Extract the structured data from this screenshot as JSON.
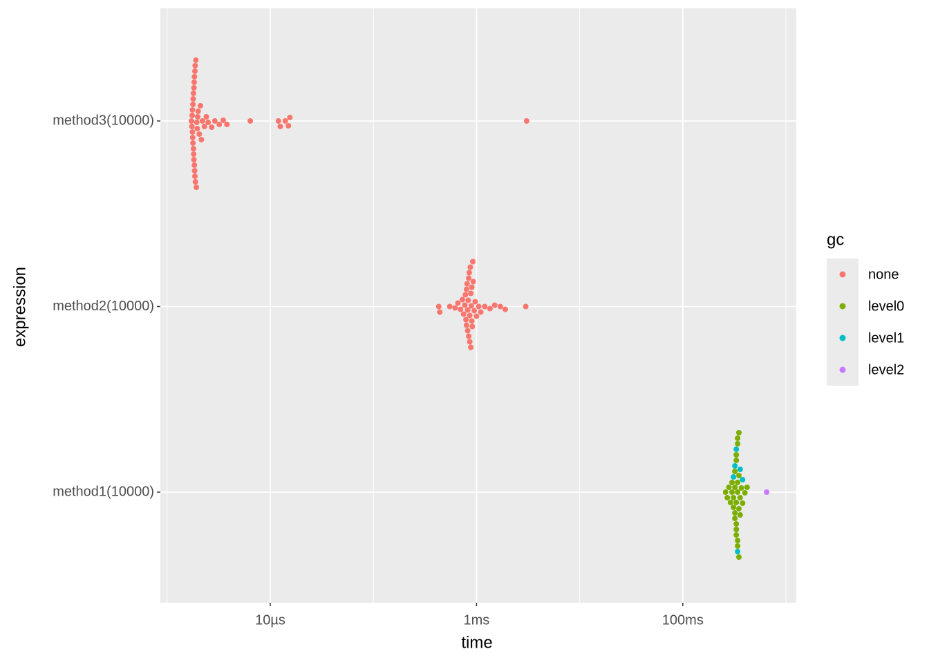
{
  "chart_data": {
    "type": "scatter",
    "x_label": "time",
    "y_label": "expression",
    "categories": [
      "method1(10000)",
      "method2(10000)",
      "method3(10000)"
    ],
    "xscale": "log",
    "xlim": [
      8.6e-07,
      1.26
    ],
    "xticks": [
      {
        "value": 1e-05,
        "label": "10µs"
      },
      {
        "value": 0.001,
        "label": "1ms"
      },
      {
        "value": 0.1,
        "label": "100ms"
      }
    ],
    "minor_xticks": [
      1e-06,
      0.0001,
      0.01,
      1
    ],
    "grid": true,
    "legend_title": "gc",
    "legend_position": "right",
    "series": [
      {
        "name": "none",
        "color": "#F8766D",
        "x": [
          1.72e-06,
          1.74e-06,
          1.75e-06,
          1.76e-06,
          1.77e-06,
          1.78e-06,
          1.79e-06,
          1.8e-06,
          1.81e-06,
          1.82e-06,
          1.83e-06,
          1.84e-06,
          1.85e-06,
          1.86e-06,
          1.87e-06,
          1.88e-06,
          1.9e-06,
          1.92e-06,
          1.94e-06,
          1.96e-06,
          1.98e-06,
          2e-06,
          2.05e-06,
          2.1e-06,
          2.15e-06,
          2.2e-06,
          2.3e-06,
          2.4e-06,
          2.5e-06,
          2.7e-06,
          2.9e-06,
          3.2e-06,
          3.5e-06,
          3.8e-06,
          1.76e-06,
          1.78e-06,
          1.8e-06,
          1.82e-06,
          1.84e-06,
          1.86e-06,
          6.4e-06,
          1.2e-05,
          1.25e-05,
          1.4e-05,
          1.5e-05,
          1.55e-05,
          0.00306,
          0.00043,
          0.00044,
          0.00055,
          0.00062,
          0.00066,
          0.0007,
          0.00073,
          0.00075,
          0.00077,
          0.00078,
          0.00079,
          0.0008,
          0.00081,
          0.00082,
          0.00083,
          0.00084,
          0.00085,
          0.00086,
          0.00087,
          0.00088,
          0.00089,
          0.0009,
          0.00091,
          0.00092,
          0.00093,
          0.00095,
          0.00097,
          0.001,
          0.00105,
          0.0011,
          0.0012,
          0.00135,
          0.0015,
          0.0017,
          0.0019,
          0.003,
          0.0008,
          0.00082,
          0.00084,
          0.00086,
          0.00088,
          0.0009
        ],
        "y": [
          "method3(10000)",
          "method3(10000)",
          "method3(10000)",
          "method3(10000)",
          "method3(10000)",
          "method3(10000)",
          "method3(10000)",
          "method3(10000)",
          "method3(10000)",
          "method3(10000)",
          "method3(10000)",
          "method3(10000)",
          "method3(10000)",
          "method3(10000)",
          "method3(10000)",
          "method3(10000)",
          "method3(10000)",
          "method3(10000)",
          "method3(10000)",
          "method3(10000)",
          "method3(10000)",
          "method3(10000)",
          "method3(10000)",
          "method3(10000)",
          "method3(10000)",
          "method3(10000)",
          "method3(10000)",
          "method3(10000)",
          "method3(10000)",
          "method3(10000)",
          "method3(10000)",
          "method3(10000)",
          "method3(10000)",
          "method3(10000)",
          "method3(10000)",
          "method3(10000)",
          "method3(10000)",
          "method3(10000)",
          "method3(10000)",
          "method3(10000)",
          "method3(10000)",
          "method3(10000)",
          "method3(10000)",
          "method3(10000)",
          "method3(10000)",
          "method3(10000)",
          "method3(10000)",
          "method2(10000)",
          "method2(10000)",
          "method2(10000)",
          "method2(10000)",
          "method2(10000)",
          "method2(10000)",
          "method2(10000)",
          "method2(10000)",
          "method2(10000)",
          "method2(10000)",
          "method2(10000)",
          "method2(10000)",
          "method2(10000)",
          "method2(10000)",
          "method2(10000)",
          "method2(10000)",
          "method2(10000)",
          "method2(10000)",
          "method2(10000)",
          "method2(10000)",
          "method2(10000)",
          "method2(10000)",
          "method2(10000)",
          "method2(10000)",
          "method2(10000)",
          "method2(10000)",
          "method2(10000)",
          "method2(10000)",
          "method2(10000)",
          "method2(10000)",
          "method2(10000)",
          "method2(10000)",
          "method2(10000)",
          "method2(10000)",
          "method2(10000)",
          "method2(10000)",
          "method2(10000)",
          "method2(10000)",
          "method2(10000)",
          "method2(10000)",
          "method2(10000)",
          "method2(10000)"
        ]
      },
      {
        "name": "level0",
        "color": "#7CAE00",
        "x": [
          0.26,
          0.27,
          0.28,
          0.29,
          0.3,
          0.3,
          0.31,
          0.31,
          0.32,
          0.32,
          0.32,
          0.33,
          0.33,
          0.33,
          0.33,
          0.34,
          0.34,
          0.34,
          0.34,
          0.35,
          0.35,
          0.35,
          0.36,
          0.36,
          0.37,
          0.38,
          0.4,
          0.42,
          0.33,
          0.34,
          0.32,
          0.35,
          0.33,
          0.34
        ],
        "y": [
          "method1(10000)",
          "method1(10000)",
          "method1(10000)",
          "method1(10000)",
          "method1(10000)",
          "method1(10000)",
          "method1(10000)",
          "method1(10000)",
          "method1(10000)",
          "method1(10000)",
          "method1(10000)",
          "method1(10000)",
          "method1(10000)",
          "method1(10000)",
          "method1(10000)",
          "method1(10000)",
          "method1(10000)",
          "method1(10000)",
          "method1(10000)",
          "method1(10000)",
          "method1(10000)",
          "method1(10000)",
          "method1(10000)",
          "method1(10000)",
          "method1(10000)",
          "method1(10000)",
          "method1(10000)",
          "method1(10000)",
          "method1(10000)",
          "method1(10000)",
          "method1(10000)",
          "method1(10000)",
          "method1(10000)",
          "method1(10000)"
        ]
      },
      {
        "name": "level1",
        "color": "#00BFC4",
        "x": [
          0.31,
          0.32,
          0.33,
          0.34,
          0.36,
          0.38
        ],
        "y": [
          "method1(10000)",
          "method1(10000)",
          "method1(10000)",
          "method1(10000)",
          "method1(10000)",
          "method1(10000)"
        ]
      },
      {
        "name": "level2",
        "color": "#C77CFF",
        "x": [
          0.65
        ],
        "y": [
          "method1(10000)"
        ]
      }
    ]
  }
}
